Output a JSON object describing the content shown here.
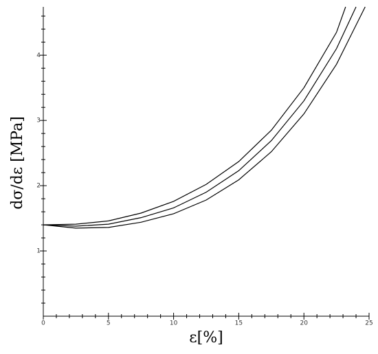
{
  "chart_data": {
    "type": "line",
    "xlabel": "ε[%]",
    "ylabel": "dσ/dε [MPa]",
    "xlim": [
      0,
      25
    ],
    "ylim": [
      0,
      4.74
    ],
    "xticks": [
      0,
      5,
      10,
      15,
      20,
      25
    ],
    "yticks": [
      1,
      2,
      3,
      4
    ],
    "xminorticks": [
      1,
      2,
      3,
      4,
      6,
      7,
      8,
      9,
      11,
      12,
      13,
      14,
      16,
      17,
      18,
      19,
      21,
      22,
      23,
      24
    ],
    "yminorticks": [
      0.2,
      0.4,
      0.6,
      0.8,
      1.2,
      1.4,
      1.6,
      1.8,
      2.2,
      2.4,
      2.6,
      2.8,
      3.2,
      3.4,
      3.6,
      3.8,
      4.2,
      4.4,
      4.6
    ],
    "grid": false,
    "series": [
      {
        "color": "#000000",
        "x": [
          0,
          2.5,
          5,
          7.5,
          10,
          12.5,
          15,
          17.5,
          20,
          22.5,
          23.2
        ],
        "values": [
          1.4,
          1.41,
          1.46,
          1.58,
          1.76,
          2.02,
          2.37,
          2.85,
          3.5,
          4.35,
          4.74
        ]
      },
      {
        "color": "#000000",
        "x": [
          0,
          2.5,
          5,
          7.5,
          10,
          12.5,
          15,
          17.5,
          20,
          22.5,
          24
        ],
        "values": [
          1.4,
          1.38,
          1.41,
          1.51,
          1.66,
          1.9,
          2.23,
          2.69,
          3.3,
          4.1,
          4.74
        ]
      },
      {
        "color": "#000000",
        "x": [
          0,
          2.5,
          5,
          7.5,
          10,
          12.5,
          15,
          17.5,
          20,
          22.5,
          24.7
        ],
        "values": [
          1.4,
          1.35,
          1.36,
          1.44,
          1.57,
          1.78,
          2.09,
          2.52,
          3.1,
          3.86,
          4.74
        ]
      }
    ]
  }
}
